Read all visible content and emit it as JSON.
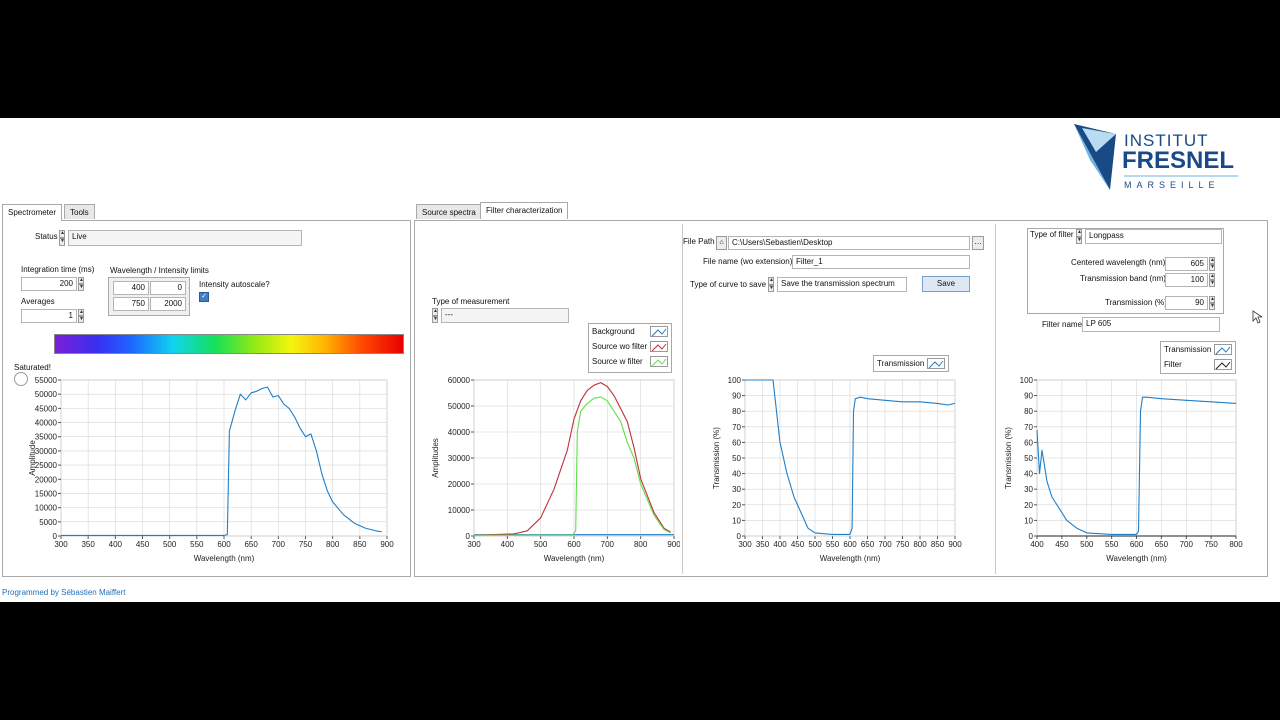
{
  "logo": {
    "line1": "INSTITUT",
    "line2": "FRESNEL",
    "line3": "MARSEILLE"
  },
  "left_tabs": [
    "Spectrometer",
    "Tools"
  ],
  "right_tabs": [
    "Source spectra",
    "Filter characterization"
  ],
  "spectrometer": {
    "status_label": "Status",
    "status_value": "Live",
    "integration_label": "Integration time (ms)",
    "integration_value": "200",
    "averages_label": "Averages",
    "averages_value": "1",
    "limits_label": "Wavelength / Intensity limits",
    "wl_min": "400",
    "int_min": "0",
    "wl_max": "750",
    "int_max": "2000",
    "autoscale_label": "Intensity autoscale?",
    "autoscale_checked": true,
    "saturated_label": "Saturated!"
  },
  "measurement": {
    "label": "Type of measurement",
    "value": "---"
  },
  "file": {
    "path_label": "File Path",
    "path_value": "C:\\Users\\Sebastien\\Desktop",
    "name_label": "File name (wo extension)",
    "name_value": "Filter_1",
    "curve_label": "Type of curve to save",
    "curve_value": "Save the transmission spectrum",
    "save_label": "Save"
  },
  "filter": {
    "type_label": "Type of filter",
    "type_value": "Longpass",
    "center_label": "Centered wavelength (nm)",
    "center_value": "605",
    "band_label": "Transmission band (nm)",
    "band_value": "100",
    "trans_label": "Transmission (%)",
    "trans_value": "90",
    "name_label": "Filter name",
    "name_value": "LP  605"
  },
  "legends": {
    "sources": [
      "Background",
      "Source wo filter",
      "Source w filter"
    ],
    "transmission": [
      "Transmission"
    ],
    "filter": [
      "Transmission",
      "Filter"
    ]
  },
  "footer": "Programmed by Sébastien Maiffert",
  "colors": {
    "blue": "#1f7fc8",
    "red": "#c0303a",
    "green": "#5fe04a",
    "black": "#222222",
    "tab_border": "#a9a9a9"
  },
  "chart_data": [
    {
      "type": "line",
      "xlabel": "Wavelength (nm)",
      "ylabel": "Amplitude",
      "xlim": [
        300,
        900
      ],
      "ylim": [
        0,
        55000
      ],
      "xticks": [
        300,
        350,
        400,
        450,
        500,
        550,
        600,
        650,
        700,
        750,
        800,
        850,
        900
      ],
      "yticks": [
        0,
        5000,
        10000,
        15000,
        20000,
        25000,
        30000,
        35000,
        40000,
        45000,
        50000,
        55000
      ],
      "series": [
        {
          "color": "#1f7fc8",
          "x": [
            300,
            600,
            606,
            610,
            620,
            630,
            640,
            650,
            660,
            670,
            680,
            690,
            700,
            710,
            720,
            730,
            740,
            750,
            760,
            770,
            780,
            790,
            800,
            820,
            840,
            860,
            880,
            890
          ],
          "y": [
            200,
            200,
            500,
            37000,
            44000,
            50000,
            48000,
            50500,
            51000,
            52000,
            52500,
            49000,
            49500,
            46500,
            45000,
            42000,
            38000,
            35000,
            36000,
            30000,
            22000,
            16000,
            12000,
            7500,
            4500,
            2800,
            1800,
            1500
          ]
        }
      ]
    },
    {
      "type": "line",
      "xlabel": "Wavelength (nm)",
      "ylabel": "Amplitudes",
      "xlim": [
        300,
        900
      ],
      "ylim": [
        0,
        60000
      ],
      "xticks": [
        300,
        400,
        500,
        600,
        700,
        800,
        900
      ],
      "yticks": [
        0,
        10000,
        20000,
        30000,
        40000,
        50000,
        60000
      ],
      "series": [
        {
          "name": "Background",
          "color": "#1f7fc8",
          "x": [
            300,
            900
          ],
          "y": [
            500,
            500
          ]
        },
        {
          "name": "Source wo filter",
          "color": "#c0303a",
          "x": [
            300,
            420,
            460,
            500,
            540,
            580,
            600,
            620,
            640,
            660,
            680,
            700,
            720,
            740,
            760,
            780,
            800,
            840,
            870,
            890
          ],
          "y": [
            300,
            800,
            2000,
            7000,
            18000,
            33000,
            45000,
            52000,
            56000,
            58000,
            59000,
            57500,
            54000,
            49000,
            44000,
            34000,
            22000,
            9000,
            3000,
            1500
          ]
        },
        {
          "name": "Source w filter",
          "color": "#5fe04a",
          "x": [
            300,
            595,
            605,
            610,
            620,
            640,
            660,
            680,
            700,
            720,
            740,
            760,
            780,
            800,
            840,
            870,
            890
          ],
          "y": [
            300,
            300,
            2000,
            40000,
            48000,
            51000,
            53000,
            53500,
            52000,
            48000,
            44000,
            36000,
            30000,
            20000,
            8000,
            2500,
            1200
          ]
        }
      ]
    },
    {
      "type": "line",
      "xlabel": "Wavelength (nm)",
      "ylabel": "Transmission (%)",
      "xlim": [
        300,
        900
      ],
      "ylim": [
        0,
        100
      ],
      "xticks": [
        300,
        350,
        400,
        450,
        500,
        550,
        600,
        650,
        700,
        750,
        800,
        850,
        900
      ],
      "yticks": [
        0,
        10,
        20,
        30,
        40,
        50,
        60,
        70,
        80,
        90,
        100
      ],
      "series": [
        {
          "name": "Transmission",
          "color": "#1f7fc8",
          "x": [
            300,
            380,
            400,
            420,
            440,
            460,
            480,
            500,
            550,
            600,
            606,
            610,
            615,
            630,
            650,
            700,
            750,
            800,
            850,
            880,
            900
          ],
          "y": [
            100,
            100,
            60,
            40,
            25,
            15,
            5,
            2,
            1,
            1,
            5,
            80,
            88,
            89,
            88,
            87,
            86,
            86,
            85,
            84,
            85
          ]
        }
      ]
    },
    {
      "type": "line",
      "xlabel": "Wavelength (nm)",
      "ylabel": "Transmission (%)",
      "xlim": [
        400,
        800
      ],
      "ylim": [
        0,
        100
      ],
      "xticks": [
        400,
        450,
        500,
        550,
        600,
        650,
        700,
        750,
        800
      ],
      "yticks": [
        0,
        10,
        20,
        30,
        40,
        50,
        60,
        70,
        80,
        90,
        100
      ],
      "series": [
        {
          "name": "Transmission",
          "color": "#1f7fc8",
          "x": [
            400,
            405,
            410,
            420,
            430,
            440,
            460,
            480,
            500,
            550,
            600,
            604,
            608,
            612,
            620,
            650,
            700,
            750,
            800
          ],
          "y": [
            68,
            40,
            55,
            35,
            25,
            20,
            10,
            5,
            2,
            1,
            1,
            3,
            80,
            89,
            89,
            88,
            87,
            86,
            85
          ]
        },
        {
          "name": "Filter",
          "color": "#222222",
          "x": [
            400,
            800
          ],
          "y": [
            0,
            0
          ]
        }
      ]
    }
  ]
}
